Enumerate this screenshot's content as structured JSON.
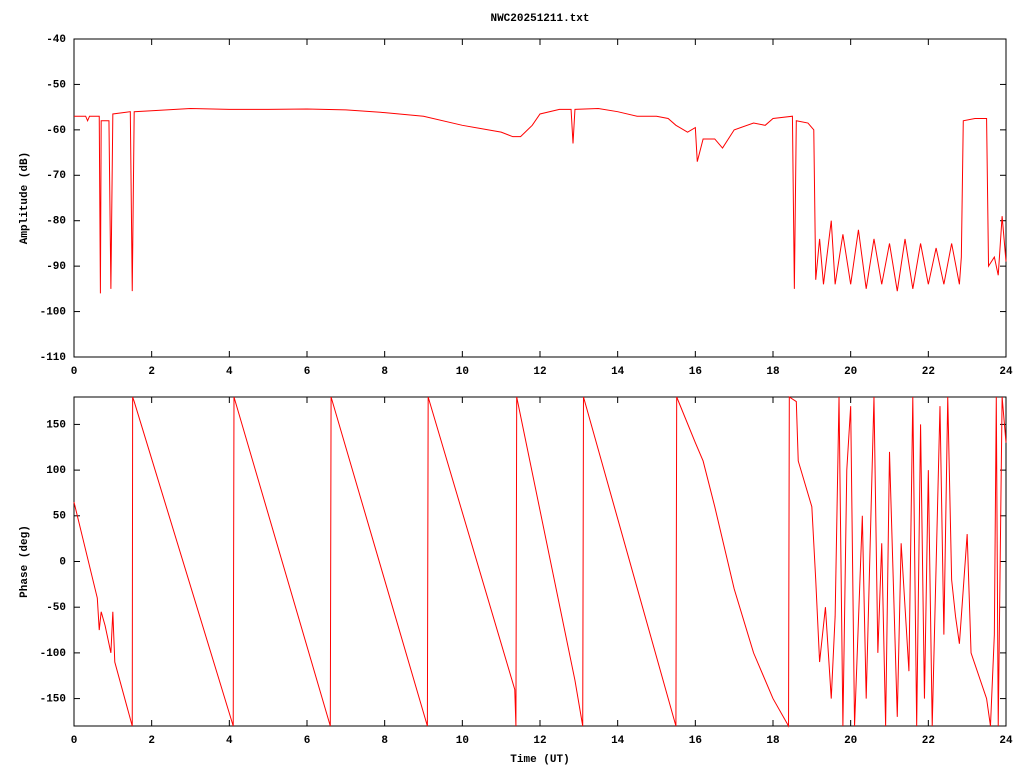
{
  "chart_data": [
    {
      "type": "line",
      "title": "NWC20251211.txt",
      "y_label": "Amplitude (dB)",
      "xlim": [
        0,
        24
      ],
      "xticks": [
        0,
        2,
        4,
        6,
        8,
        10,
        12,
        14,
        16,
        18,
        20,
        22,
        24
      ],
      "ylim": [
        -110,
        -40
      ],
      "yticks": [
        -40,
        -50,
        -60,
        -70,
        -80,
        -90,
        -100,
        -110
      ],
      "grid": false,
      "series": [
        {
          "name": "Amplitude",
          "color": "#ff0000",
          "x": [
            0,
            0.3,
            0.35,
            0.4,
            0.65,
            0.68,
            0.7,
            0.9,
            0.95,
            1.0,
            1.45,
            1.5,
            1.55,
            2,
            3,
            4,
            5,
            6,
            7,
            8,
            9,
            10,
            11,
            11.3,
            11.5,
            11.8,
            12,
            12.5,
            12.8,
            12.85,
            12.9,
            13.5,
            14,
            14.5,
            15,
            15.3,
            15.5,
            15.8,
            16,
            16.05,
            16.2,
            16.5,
            16.7,
            17,
            17.5,
            17.8,
            18,
            18.5,
            18.55,
            18.6,
            18.9,
            19.05,
            19.1,
            19.2,
            19.3,
            19.5,
            19.6,
            19.8,
            20,
            20.2,
            20.4,
            20.6,
            20.8,
            21,
            21.2,
            21.4,
            21.6,
            21.8,
            22,
            22.2,
            22.4,
            22.6,
            22.8,
            22.85,
            22.9,
            23.2,
            23.5,
            23.55,
            23.7,
            23.8,
            23.9,
            24
          ],
          "values": [
            -57,
            -57,
            -58,
            -57,
            -57,
            -96,
            -58,
            -58,
            -95,
            -56.5,
            -56,
            -95.5,
            -56,
            -55.8,
            -55.3,
            -55.5,
            -55.5,
            -55.4,
            -55.6,
            -56.2,
            -57,
            -59,
            -60.5,
            -61.5,
            -61.5,
            -59,
            -56.5,
            -55.5,
            -55.5,
            -63,
            -55.5,
            -55.3,
            -56,
            -57,
            -57,
            -57.5,
            -59,
            -60.5,
            -59.5,
            -67,
            -62,
            -62,
            -64,
            -60,
            -58.5,
            -59,
            -57.5,
            -57,
            -95,
            -58,
            -58.5,
            -60,
            -93,
            -84,
            -94,
            -80,
            -94,
            -83,
            -94,
            -82,
            -95,
            -84,
            -94,
            -85,
            -95.5,
            -84,
            -95,
            -85,
            -94,
            -86,
            -94,
            -85,
            -94,
            -88,
            -58,
            -57.5,
            -57.5,
            -90,
            -88,
            -92,
            -79,
            -89
          ]
        }
      ]
    },
    {
      "type": "line",
      "x_label": "Time (UT)",
      "y_label": "Phase (deg)",
      "xlim": [
        0,
        24
      ],
      "xticks": [
        0,
        2,
        4,
        6,
        8,
        10,
        12,
        14,
        16,
        18,
        20,
        22,
        24
      ],
      "ylim": [
        -180,
        180
      ],
      "yticks": [
        150,
        100,
        50,
        0,
        -50,
        -100,
        -150
      ],
      "grid": false,
      "series": [
        {
          "name": "Phase",
          "color": "#ff0000",
          "x": [
            0,
            0.6,
            0.65,
            0.7,
            0.8,
            0.95,
            1.0,
            1.05,
            1.5,
            1.51,
            1.55,
            4.1,
            4.12,
            6.6,
            6.62,
            9.1,
            9.12,
            11.35,
            11.38,
            11.4,
            12.9,
            13.1,
            13.12,
            15.5,
            15.52,
            16,
            16.2,
            16.5,
            17,
            17.5,
            18,
            18.4,
            18.42,
            18.6,
            18.65,
            19,
            19.1,
            19.2,
            19.35,
            19.5,
            19.6,
            19.7,
            19.8,
            19.9,
            20,
            20.1,
            20.3,
            20.4,
            20.6,
            20.7,
            20.8,
            20.9,
            21,
            21.2,
            21.3,
            21.5,
            21.6,
            21.7,
            21.8,
            21.9,
            22,
            22.1,
            22.3,
            22.4,
            22.5,
            22.6,
            22.7,
            22.8,
            23,
            23.1,
            23.5,
            23.6,
            23.7,
            23.75,
            23.8,
            23.9,
            24
          ],
          "values": [
            65,
            -40,
            -75,
            -55,
            -70,
            -100,
            -55,
            -110,
            -180,
            180,
            175,
            -180,
            180,
            -180,
            180,
            -180,
            180,
            -140,
            -180,
            180,
            -130,
            -180,
            180,
            -180,
            180,
            130,
            110,
            60,
            -30,
            -100,
            -150,
            -180,
            180,
            175,
            110,
            60,
            -20,
            -110,
            -50,
            -150,
            -60,
            180,
            -180,
            100,
            170,
            -180,
            50,
            -150,
            180,
            -100,
            20,
            -180,
            120,
            -170,
            20,
            -120,
            180,
            -180,
            150,
            -150,
            100,
            -180,
            170,
            -80,
            180,
            -20,
            -60,
            -90,
            30,
            -100,
            -150,
            -180,
            -80,
            180,
            -180,
            180,
            130
          ]
        }
      ]
    }
  ]
}
